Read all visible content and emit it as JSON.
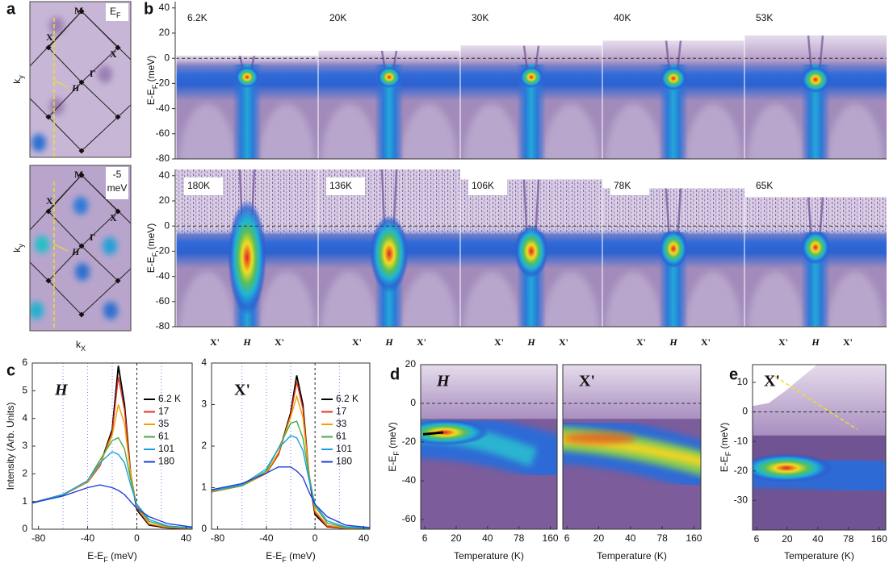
{
  "panel_a": {
    "label": "a",
    "ylabel": {
      "main": "k",
      "sub": "y"
    },
    "xlabel": {
      "main": "k",
      "sub": "X"
    },
    "maps": [
      {
        "energy": {
          "main": "E",
          "sub": "F"
        },
        "points": [
          "M",
          "X",
          "X",
          "Γ",
          "H"
        ]
      },
      {
        "energy_lines": [
          "-5",
          "meV"
        ],
        "points": [
          "M",
          "X",
          "X",
          "Γ",
          "H"
        ]
      }
    ]
  },
  "panel_b": {
    "label": "b",
    "ylabel": {
      "main": "E-E",
      "sub": "F",
      "unit": " (meV)"
    },
    "ylim": [
      -80,
      45
    ],
    "yticks": [
      40,
      20,
      0,
      -20,
      -40,
      -60,
      -80
    ],
    "rows": [
      [
        "6.2K",
        "20K",
        "30K",
        "40K",
        "53K"
      ],
      [
        "180K",
        "136K",
        "106K",
        "78K",
        "65K"
      ]
    ],
    "xlabels": [
      "X'",
      "H",
      "X'"
    ]
  },
  "chart_data": [
    {
      "type": "line",
      "label": "c",
      "title": "H",
      "ylabel": "Intensity (Arb. Units)",
      "xlabel": {
        "main": "E-E",
        "sub": "F",
        "unit": " (meV)"
      },
      "xlim": [
        -85,
        45
      ],
      "ylim": [
        0,
        6
      ],
      "xticks": [
        -80,
        -40,
        0,
        40
      ],
      "yticks": [
        0,
        1,
        2,
        3,
        4,
        5,
        6
      ],
      "vlines": [
        -60,
        -40,
        -20,
        20
      ],
      "zero_line": true,
      "legend": "right",
      "x": [
        -85,
        -60,
        -40,
        -30,
        -20,
        -15,
        -10,
        -5,
        0,
        10,
        25,
        45
      ],
      "series": [
        {
          "name": "6.2 K",
          "color": "#000000",
          "values": [
            0.95,
            1.25,
            1.7,
            2.3,
            3.6,
            5.9,
            4.5,
            2.0,
            0.7,
            0.15,
            0.05,
            0.02
          ]
        },
        {
          "name": "17",
          "color": "#e8321e",
          "values": [
            0.95,
            1.25,
            1.7,
            2.3,
            3.5,
            5.5,
            4.3,
            2.0,
            0.75,
            0.18,
            0.06,
            0.03
          ]
        },
        {
          "name": "35",
          "color": "#f0a000",
          "values": [
            0.95,
            1.25,
            1.7,
            2.35,
            3.4,
            4.5,
            3.8,
            2.0,
            0.8,
            0.2,
            0.07,
            0.03
          ]
        },
        {
          "name": "61",
          "color": "#4aa84a",
          "values": [
            0.95,
            1.25,
            1.75,
            2.5,
            3.2,
            3.3,
            2.9,
            1.8,
            0.85,
            0.28,
            0.1,
            0.04
          ]
        },
        {
          "name": "101",
          "color": "#1aa0e0",
          "values": [
            0.95,
            1.25,
            1.75,
            2.4,
            2.8,
            2.7,
            2.4,
            1.6,
            0.9,
            0.35,
            0.12,
            0.05
          ]
        },
        {
          "name": "180",
          "color": "#1f3fd8",
          "values": [
            0.95,
            1.2,
            1.5,
            1.6,
            1.5,
            1.4,
            1.25,
            1.0,
            0.75,
            0.45,
            0.2,
            0.08
          ]
        }
      ]
    },
    {
      "type": "line",
      "title": "X'",
      "xlabel": {
        "main": "E-E",
        "sub": "F",
        "unit": " (meV)"
      },
      "xlim": [
        -85,
        45
      ],
      "ylim": [
        0,
        4
      ],
      "xticks": [
        -80,
        -40,
        0,
        40
      ],
      "yticks": [
        0,
        1,
        2,
        3,
        4
      ],
      "vlines": [
        -60,
        -40,
        -20,
        20
      ],
      "zero_line": true,
      "legend": "right",
      "x": [
        -85,
        -60,
        -40,
        -30,
        -20,
        -15,
        -10,
        -5,
        0,
        10,
        25,
        45
      ],
      "series": [
        {
          "name": "6.2 K",
          "color": "#000000",
          "values": [
            0.9,
            1.05,
            1.35,
            1.8,
            2.8,
            3.7,
            3.0,
            1.3,
            0.35,
            0.06,
            0.02,
            0.01
          ]
        },
        {
          "name": "17",
          "color": "#e8321e",
          "values": [
            0.9,
            1.05,
            1.35,
            1.8,
            2.75,
            3.55,
            2.9,
            1.35,
            0.4,
            0.07,
            0.02,
            0.01
          ]
        },
        {
          "name": "33",
          "color": "#f0a000",
          "values": [
            0.9,
            1.05,
            1.35,
            1.85,
            2.7,
            3.2,
            2.7,
            1.35,
            0.45,
            0.1,
            0.03,
            0.01
          ]
        },
        {
          "name": "61",
          "color": "#4aa84a",
          "values": [
            0.92,
            1.05,
            1.4,
            1.95,
            2.55,
            2.6,
            2.2,
            1.3,
            0.55,
            0.15,
            0.04,
            0.02
          ]
        },
        {
          "name": "101",
          "color": "#1aa0e0",
          "values": [
            0.93,
            1.07,
            1.45,
            1.95,
            2.25,
            2.2,
            1.9,
            1.2,
            0.6,
            0.2,
            0.06,
            0.03
          ]
        },
        {
          "name": "180",
          "color": "#1f3fd8",
          "values": [
            0.95,
            1.1,
            1.35,
            1.5,
            1.5,
            1.4,
            1.25,
            0.9,
            0.6,
            0.3,
            0.1,
            0.04
          ]
        }
      ]
    }
  ],
  "panel_d": {
    "label": "d",
    "ylabel": {
      "main": "E-E",
      "sub": "F",
      "unit": " (meV)"
    },
    "ylim": [
      -65,
      20
    ],
    "yticks": [
      20,
      0,
      -20,
      -40,
      -60
    ],
    "xtick_labels": [
      "6",
      "20",
      "40",
      "78",
      "160"
    ],
    "xlabel": "Temperature (K)",
    "maps": [
      "H",
      "X'"
    ]
  },
  "panel_e": {
    "label": "e",
    "ylabel": {
      "main": "E-E",
      "sub": "F",
      "unit": " (meV)"
    },
    "ylim": [
      -40,
      16
    ],
    "yticks": [
      10,
      0,
      -10,
      -20,
      -30
    ],
    "xtick_labels": [
      "6",
      "20",
      "40",
      "78",
      "160"
    ],
    "xlabel": "Temperature (K)",
    "title": "X'"
  }
}
